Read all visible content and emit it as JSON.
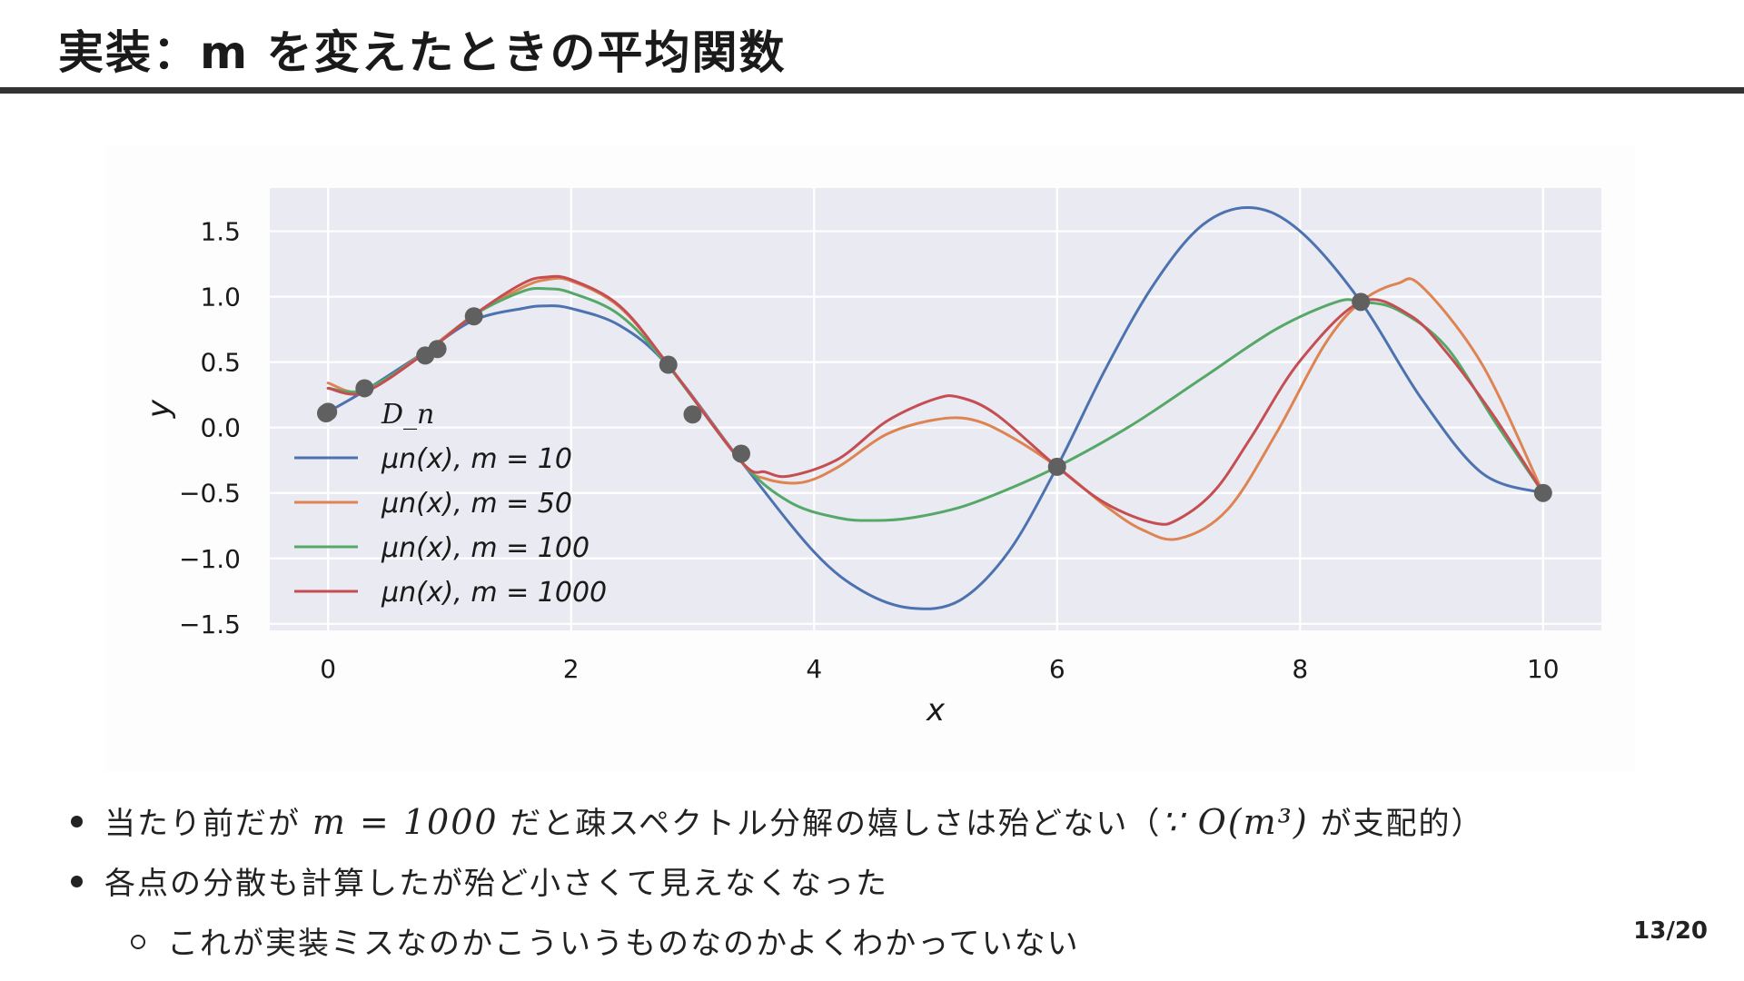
{
  "slide": {
    "title": "実装：m を変えたときの平均関数",
    "page_number": "13/20"
  },
  "bullets": [
    {
      "prefix": "当たり前だが",
      "math": "m = 1000",
      "middle": "だと疎スペクトル分解の嬉しさは殆どない（",
      "math2": "∵ O(m³)",
      "suffix": "が支配的）"
    },
    {
      "text": "各点の分散も計算したが殆ど小さくて見えなくなった"
    }
  ],
  "sub_bullets": [
    {
      "text": "これが実装ミスなのかこういうものなのかよくわかっていない"
    }
  ],
  "chart_data": {
    "type": "line",
    "xlabel": "x",
    "ylabel": "y",
    "xlim": [
      -0.48,
      10.48
    ],
    "ylim": [
      -1.55,
      1.83
    ],
    "xticks": [
      0,
      2,
      4,
      6,
      8,
      10
    ],
    "xtick_labels": [
      "0",
      "2",
      "4",
      "6",
      "8",
      "10"
    ],
    "yticks": [
      1.5,
      1.0,
      0.5,
      0.0,
      -0.5,
      -1.0,
      -1.5
    ],
    "ytick_labels": [
      "1.5",
      "1.0",
      "0.5",
      "0.0",
      "−0.5",
      "−1.0",
      "−1.5"
    ],
    "grid": true,
    "legend_position": "center-left",
    "background": "#eaeaf2",
    "points": {
      "name": "D_n",
      "color": "#606060",
      "x": [
        0.0,
        0.3,
        0.8,
        0.9,
        1.2,
        2.8,
        3.0,
        3.4,
        6.0,
        8.5,
        10.0
      ],
      "y": [
        0.12,
        0.3,
        0.55,
        0.6,
        0.85,
        0.48,
        0.1,
        -0.2,
        -0.3,
        0.96,
        -0.5
      ]
    },
    "series": [
      {
        "name": "μn(x), m = 10",
        "color": "#4c72b0",
        "x": [
          0.0,
          0.3,
          0.8,
          1.2,
          1.6,
          1.8,
          2.0,
          2.4,
          2.8,
          3.4,
          4.0,
          4.4,
          4.8,
          5.2,
          5.6,
          6.0,
          6.4,
          6.8,
          7.2,
          7.6,
          8.0,
          8.5,
          9.0,
          9.5,
          10.0
        ],
        "y": [
          0.12,
          0.28,
          0.58,
          0.82,
          0.91,
          0.93,
          0.91,
          0.78,
          0.47,
          -0.26,
          -0.95,
          -1.25,
          -1.38,
          -1.32,
          -0.95,
          -0.3,
          0.45,
          1.1,
          1.55,
          1.68,
          1.5,
          0.96,
          0.22,
          -0.35,
          -0.5
        ]
      },
      {
        "name": "μn(x), m = 50",
        "color": "#dd8452",
        "x": [
          0.0,
          0.3,
          0.8,
          1.2,
          1.6,
          1.8,
          2.0,
          2.4,
          2.8,
          3.4,
          3.6,
          3.9,
          4.2,
          4.6,
          5.0,
          5.3,
          5.6,
          6.0,
          6.4,
          6.7,
          7.0,
          7.4,
          7.8,
          8.2,
          8.5,
          8.8,
          9.0,
          9.5,
          10.0
        ],
        "y": [
          0.34,
          0.28,
          0.58,
          0.86,
          1.07,
          1.13,
          1.12,
          0.92,
          0.48,
          -0.26,
          -0.39,
          -0.42,
          -0.3,
          -0.05,
          0.06,
          0.06,
          -0.06,
          -0.3,
          -0.6,
          -0.78,
          -0.85,
          -0.63,
          -0.05,
          0.63,
          0.96,
          1.1,
          1.08,
          0.48,
          -0.5
        ]
      },
      {
        "name": "μn(x), m = 100",
        "color": "#55a868",
        "x": [
          0.0,
          0.3,
          0.8,
          1.2,
          1.6,
          1.8,
          2.0,
          2.4,
          2.8,
          3.4,
          3.8,
          4.2,
          4.5,
          4.8,
          5.2,
          5.6,
          6.0,
          6.6,
          7.2,
          7.8,
          8.3,
          8.5,
          8.8,
          9.2,
          9.6,
          10.0
        ],
        "y": [
          0.3,
          0.29,
          0.57,
          0.86,
          1.04,
          1.06,
          1.03,
          0.86,
          0.47,
          -0.26,
          -0.57,
          -0.69,
          -0.71,
          -0.69,
          -0.61,
          -0.47,
          -0.3,
          0.01,
          0.38,
          0.75,
          0.96,
          0.96,
          0.9,
          0.62,
          0.05,
          -0.5
        ]
      },
      {
        "name": "μn(x), m = 1000",
        "color": "#c44e52",
        "x": [
          0.0,
          0.3,
          0.8,
          1.2,
          1.6,
          1.8,
          2.0,
          2.4,
          2.8,
          3.4,
          3.6,
          3.8,
          4.2,
          4.6,
          5.0,
          5.2,
          5.5,
          6.0,
          6.4,
          6.8,
          7.0,
          7.3,
          7.6,
          8.0,
          8.5,
          8.9,
          9.2,
          9.6,
          10.0
        ],
        "y": [
          0.3,
          0.27,
          0.57,
          0.86,
          1.1,
          1.15,
          1.13,
          0.93,
          0.48,
          -0.26,
          -0.34,
          -0.37,
          -0.24,
          0.05,
          0.22,
          0.23,
          0.1,
          -0.3,
          -0.58,
          -0.73,
          -0.7,
          -0.48,
          -0.07,
          0.51,
          0.96,
          0.86,
          0.58,
          0.08,
          -0.5
        ]
      }
    ]
  }
}
